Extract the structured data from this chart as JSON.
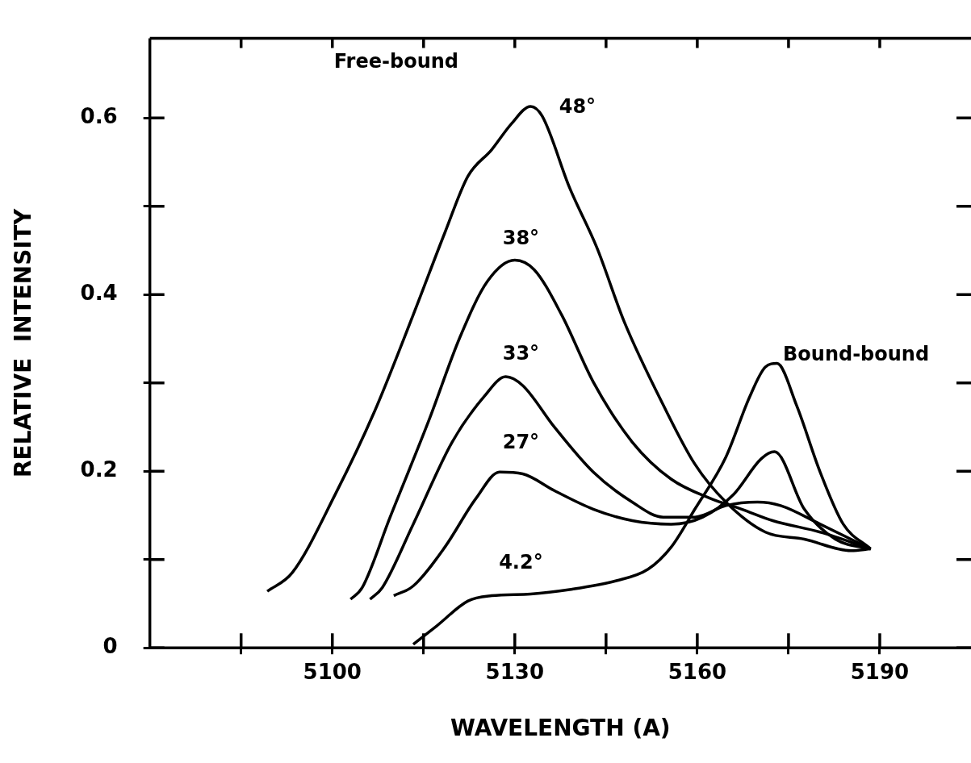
{
  "chart_data": {
    "type": "line",
    "xlabel": "WAVELENGTH (A)",
    "ylabel": "RELATIVE  INTENSITY",
    "annotations": [
      "Free-bound",
      "Bound-bound"
    ],
    "series": [
      {
        "name": "48°",
        "color": "#000000",
        "x": [
          5089.3,
          5093.4,
          5100.5,
          5106.9,
          5113.3,
          5118.5,
          5122.3,
          5126.2,
          5129.4,
          5132.6,
          5134.5,
          5139,
          5143.5,
          5148,
          5154.4,
          5159.6,
          5164.7,
          5171.2,
          5177.6,
          5185.3,
          5188.5
        ],
        "values": [
          0.064,
          0.085,
          0.174,
          0.267,
          0.377,
          0.47,
          0.534,
          0.564,
          0.593,
          0.613,
          0.602,
          0.521,
          0.453,
          0.369,
          0.275,
          0.208,
          0.165,
          0.131,
          0.123,
          0.11,
          0.112
        ]
      },
      {
        "name": "38°",
        "color": "#000000",
        "x": [
          5103,
          5104.9,
          5109.5,
          5115.9,
          5121,
          5125.5,
          5130,
          5133.2,
          5137.7,
          5142.9,
          5149.3,
          5155.7,
          5162.2,
          5167.3,
          5172.4,
          5180.2,
          5188.5
        ],
        "values": [
          0.055,
          0.068,
          0.148,
          0.258,
          0.352,
          0.415,
          0.439,
          0.428,
          0.377,
          0.301,
          0.233,
          0.191,
          0.169,
          0.157,
          0.144,
          0.131,
          0.112
        ]
      },
      {
        "name": "33°",
        "color": "#000000",
        "x": [
          5106.2,
          5108.2,
          5113.3,
          5119.7,
          5124.9,
          5128.5,
          5131.3,
          5136.5,
          5142.9,
          5149.3,
          5154.4,
          5159.6,
          5164.7,
          5169.9,
          5173.7,
          5180.2,
          5188.5
        ],
        "values": [
          0.055,
          0.068,
          0.14,
          0.233,
          0.284,
          0.307,
          0.297,
          0.25,
          0.199,
          0.165,
          0.148,
          0.148,
          0.161,
          0.165,
          0.161,
          0.14,
          0.112
        ]
      },
      {
        "name": "27°",
        "color": "#000000",
        "x": [
          5110.1,
          5113.3,
          5118.5,
          5123.6,
          5127.5,
          5131.3,
          5136.5,
          5142.9,
          5149.3,
          5155.7,
          5160.9,
          5166,
          5170.5,
          5172.7,
          5177.6,
          5182.7,
          5188.5
        ],
        "values": [
          0.059,
          0.07,
          0.114,
          0.169,
          0.199,
          0.197,
          0.178,
          0.157,
          0.144,
          0.14,
          0.148,
          0.174,
          0.214,
          0.222,
          0.157,
          0.123,
          0.112
        ]
      },
      {
        "name": "4.2°",
        "color": "#000000",
        "x": [
          5113.3,
          5117.2,
          5122.3,
          5126.2,
          5132.6,
          5139,
          5146.7,
          5151.9,
          5155.7,
          5159.6,
          5164.7,
          5168.6,
          5171.2,
          5173.1,
          5176.3,
          5180.2,
          5184,
          5188.5
        ],
        "values": [
          0.004,
          0.025,
          0.053,
          0.059,
          0.061,
          0.066,
          0.076,
          0.089,
          0.114,
          0.157,
          0.216,
          0.284,
          0.318,
          0.322,
          0.275,
          0.199,
          0.14,
          0.112
        ]
      }
    ],
    "xlim": [
      5070,
      5205
    ],
    "xticks": [
      {
        "value": 5085,
        "label": null
      },
      5100,
      {
        "value": 5115,
        "label": null
      },
      5130,
      {
        "value": 5145,
        "label": null
      },
      5160,
      {
        "value": 5175,
        "label": null
      },
      5190
    ],
    "ylim": [
      0,
      0.69
    ],
    "yticks": [
      0,
      {
        "value": 0.1,
        "label": null
      },
      0.2,
      {
        "value": 0.3,
        "label": null
      },
      0.4,
      {
        "value": 0.5,
        "label": null
      },
      0.6
    ],
    "grid": false,
    "legend": false,
    "marker": "none",
    "line_style": "solid"
  }
}
